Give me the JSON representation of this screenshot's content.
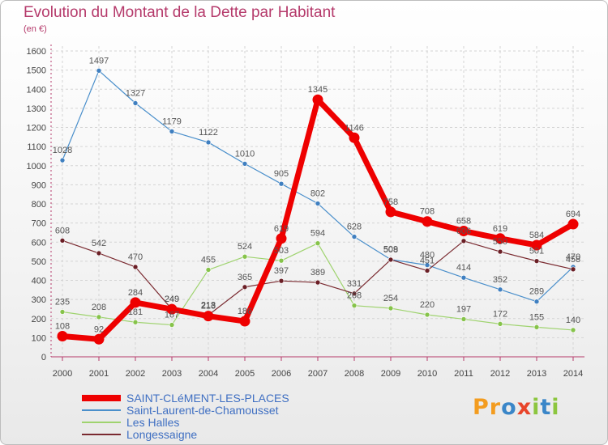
{
  "header": {
    "title": "Evolution du Montant de la Dette par Habitant",
    "unit": "(en €)"
  },
  "logo": {
    "letters": [
      "P",
      "r",
      "o",
      "x",
      "i",
      "t",
      "i"
    ],
    "colors": [
      "#f39c1f",
      "#f39c1f",
      "#3a86c8",
      "#e8442a",
      "#8cc63f",
      "#3a86c8",
      "#8cc63f"
    ]
  },
  "chart_data": {
    "type": "line",
    "title": "Evolution du Montant de la Dette par Habitant",
    "ylabel": "(en €)",
    "xlabel": "",
    "ylim": [
      0,
      1600
    ],
    "yticks": [
      0,
      100,
      200,
      300,
      400,
      500,
      600,
      700,
      800,
      900,
      1000,
      1100,
      1200,
      1300,
      1400,
      1500,
      1600
    ],
    "grid": true,
    "legend_position": "bottom-left",
    "categories": [
      "2000",
      "2001",
      "2002",
      "2003",
      "2004",
      "2005",
      "2006",
      "2007",
      "2008",
      "2009",
      "2010",
      "2011",
      "2012",
      "2013",
      "2014"
    ],
    "series": [
      {
        "name": "Saint-Laurent-de-Chamousset",
        "color": "#4a8fcb",
        "marker": "#3f7fc0",
        "width": 1.2,
        "values": [
          1028,
          1497,
          1327,
          1179,
          1122,
          1010,
          905,
          802,
          628,
          509,
          480,
          414,
          352,
          289,
          470
        ]
      },
      {
        "name": "Les Halles",
        "color": "#9fd36f",
        "marker": "#86c34a",
        "width": 1.2,
        "values": [
          235,
          208,
          181,
          167,
          455,
          524,
          503,
          594,
          268,
          254,
          220,
          197,
          172,
          155,
          140
        ]
      },
      {
        "name": "Longessaigne",
        "color": "#7a2a30",
        "marker": "#6b1f26",
        "width": 1.2,
        "values": [
          608,
          542,
          470,
          249,
          218,
          365,
          397,
          389,
          331,
          508,
          451,
          606,
          550,
          501,
          458
        ]
      },
      {
        "name": "SAINT-CLéMENT-LES-PLACES",
        "color": "#ee0000",
        "marker": "#ee0000",
        "width": 7,
        "values": [
          108,
          92,
          284,
          249,
          213,
          186,
          619,
          1345,
          1146,
          758,
          708,
          658,
          619,
          584,
          694
        ]
      }
    ]
  }
}
